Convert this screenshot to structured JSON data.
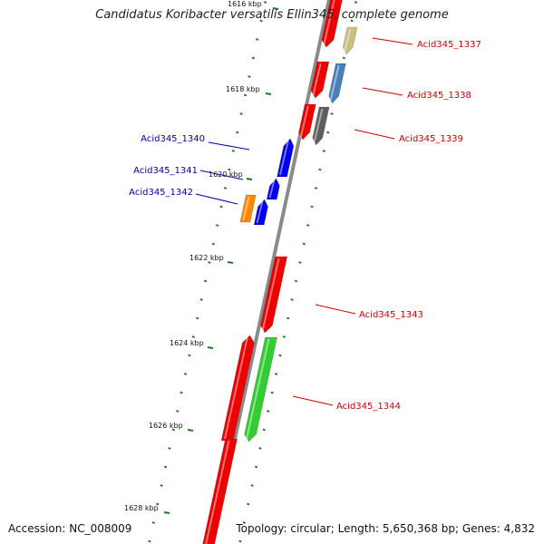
{
  "title": "Candidatus Koribacter versatilis Ellin345, complete genome",
  "accession": "Accession: NC_008009",
  "topology": "Topology: circular; Length: 5,650,368 bp; Genes: 4,832",
  "kbp_labels": [
    "1616 kbp",
    "1618 kbp",
    "1620 kbp",
    "1622 kbp",
    "1624 kbp",
    "1626 kbp",
    "1628 kbp"
  ],
  "genes": [
    {
      "name": "Acid345_1337",
      "color": "#cc0000"
    },
    {
      "name": "Acid345_1338",
      "color": "#cc0000"
    },
    {
      "name": "Acid345_1339",
      "color": "#cc0000"
    },
    {
      "name": "Acid345_1340",
      "color": "#0000aa"
    },
    {
      "name": "Acid345_1341",
      "color": "#0000aa"
    },
    {
      "name": "Acid345_1342",
      "color": "#0000aa"
    },
    {
      "name": "Acid345_1343",
      "color": "#cc0000"
    },
    {
      "name": "Acid345_1344",
      "color": "#cc0000"
    }
  ],
  "colors": {
    "backbone": "#8a8a8a",
    "tick": "#1a7a1a",
    "red": "#ee0000",
    "khaki": "#c9bf7e",
    "steel": "#4a7fb5",
    "gray": "#5e5e5e",
    "blue": "#0000ee",
    "orange": "#ff8800",
    "green": "#33cc33"
  }
}
